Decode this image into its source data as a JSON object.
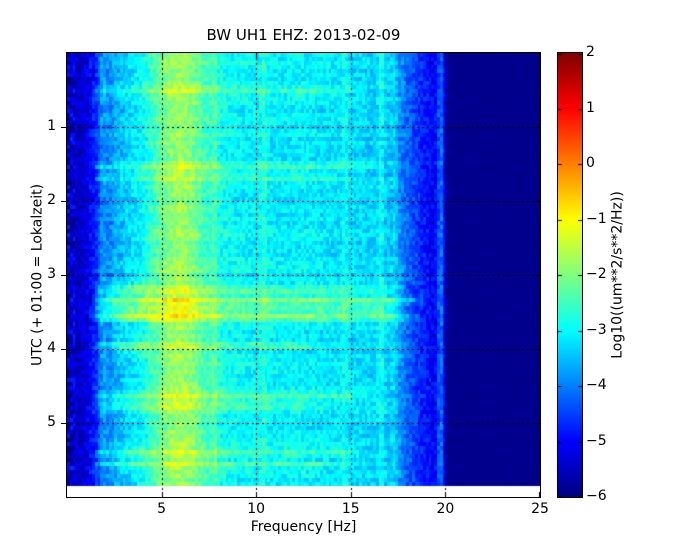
{
  "chart_data": {
    "type": "heatmap",
    "subtype": "spectrogram",
    "title": "BW UH1 EHZ: 2013-02-09",
    "xlabel": "Frequency [Hz]",
    "ylabel": "UTC (+ 01:00 = Lokalzeit)",
    "xlim": [
      0,
      25
    ],
    "ylim": [
      0,
      6
    ],
    "x_ticks": [
      5,
      10,
      15,
      20,
      25
    ],
    "x_tick_labels": [
      "5",
      "10",
      "15",
      "20",
      "25"
    ],
    "y_ticks": [
      1,
      2,
      3,
      4,
      5
    ],
    "y_tick_labels": [
      "1",
      "2",
      "3",
      "4",
      "5"
    ],
    "grid": {
      "shown": true,
      "style": "dotted",
      "color": "#000000"
    },
    "legend_position": "none",
    "data_time_extent": [
      0,
      5.85
    ],
    "colorbar": {
      "label": "Log10((um**2/s**2/Hz))",
      "vmin": -6,
      "vmax": 2,
      "ticks": [
        2,
        1,
        0,
        -1,
        -2,
        -3,
        -4,
        -5,
        -6
      ],
      "tick_labels": [
        "2",
        "1",
        "0",
        "−1",
        "−2",
        "−3",
        "−4",
        "−5",
        "−6"
      ],
      "colormap": "jet"
    },
    "spectrum_profile": [
      [
        0,
        -5.45
      ],
      [
        0.3,
        -5.3
      ],
      [
        0.7,
        -5.45
      ],
      [
        1.1,
        -5.2
      ],
      [
        1.5,
        -4.7
      ],
      [
        2,
        -4.15
      ],
      [
        2.5,
        -3.7
      ],
      [
        3,
        -3.4
      ],
      [
        3.5,
        -3.2
      ],
      [
        4,
        -2.95
      ],
      [
        4.5,
        -2.55
      ],
      [
        5,
        -2.15
      ],
      [
        5.5,
        -1.85
      ],
      [
        6,
        -1.75
      ],
      [
        6.5,
        -1.9
      ],
      [
        7,
        -2.25
      ],
      [
        7.5,
        -2.6
      ],
      [
        8,
        -2.85
      ],
      [
        9,
        -3.0
      ],
      [
        10,
        -3.05
      ],
      [
        11,
        -3.1
      ],
      [
        12,
        -3.05
      ],
      [
        13,
        -3.1
      ],
      [
        14,
        -3.2
      ],
      [
        15,
        -3.25
      ],
      [
        16,
        -3.3
      ],
      [
        17,
        -3.45
      ],
      [
        17.5,
        -3.8
      ],
      [
        18,
        -4.2
      ],
      [
        18.5,
        -4.55
      ],
      [
        19,
        -4.85
      ],
      [
        19.5,
        -5.15
      ],
      [
        20,
        -5.7
      ],
      [
        20.3,
        -5.9
      ],
      [
        25,
        -5.9
      ]
    ],
    "vertical_lines": [
      {
        "f": 1.9,
        "boost": 0.5
      },
      {
        "f": 7.8,
        "boost": 0.4
      },
      {
        "f": 10.4,
        "boost": 0.35
      },
      {
        "f": 14.7,
        "boost": 0.3
      },
      {
        "f": 16.6,
        "boost": 0.55
      },
      {
        "f": 17.3,
        "boost": 0.4
      },
      {
        "f": 19.75,
        "boost": 1.35
      }
    ],
    "events": [
      {
        "t": 0.52,
        "fmax": 16.0,
        "boost": 0.55
      },
      {
        "t": 1.55,
        "fmax": 17.0,
        "boost": 0.55
      },
      {
        "t": 1.68,
        "fmax": 15.5,
        "boost": 0.4
      },
      {
        "t": 3.22,
        "fmax": 18.0,
        "boost": 0.75
      },
      {
        "t": 3.34,
        "fmax": 19.2,
        "boost": 1.25
      },
      {
        "t": 3.46,
        "fmax": 18.2,
        "boost": 0.8
      },
      {
        "t": 3.57,
        "fmax": 19.0,
        "boost": 1.15
      },
      {
        "t": 3.95,
        "fmax": 14.0,
        "boost": 0.5
      },
      {
        "t": 4.62,
        "fmax": 16.5,
        "boost": 0.75
      },
      {
        "t": 4.76,
        "fmax": 14.0,
        "boost": 0.45
      },
      {
        "t": 5.38,
        "fmax": 16.5,
        "boost": 0.6
      },
      {
        "t": 5.56,
        "fmax": 15.5,
        "boost": 0.5
      }
    ],
    "event_sigma_hours": 0.035,
    "patches": [
      {
        "t0": 3.05,
        "t1": 3.65,
        "f0": 2.0,
        "f1": 4.8,
        "boost": 0.5
      },
      {
        "t0": 3.75,
        "t1": 4.1,
        "f0": 2.2,
        "f1": 4.6,
        "boost": 0.45
      },
      {
        "t0": 4.55,
        "t1": 4.85,
        "f0": 2.3,
        "f1": 4.5,
        "boost": 0.3
      },
      {
        "t0": 5.3,
        "t1": 5.7,
        "f0": 2.3,
        "f1": 4.6,
        "boost": 0.3
      }
    ],
    "noise": {
      "amplitude": 0.38,
      "row_amplitude": 0.16,
      "low_freq_amplitude": 0.7,
      "seed": 42
    },
    "bins": {
      "freq": 170,
      "time": 108
    },
    "frame_color": "#000000",
    "background": "#ffffff"
  }
}
